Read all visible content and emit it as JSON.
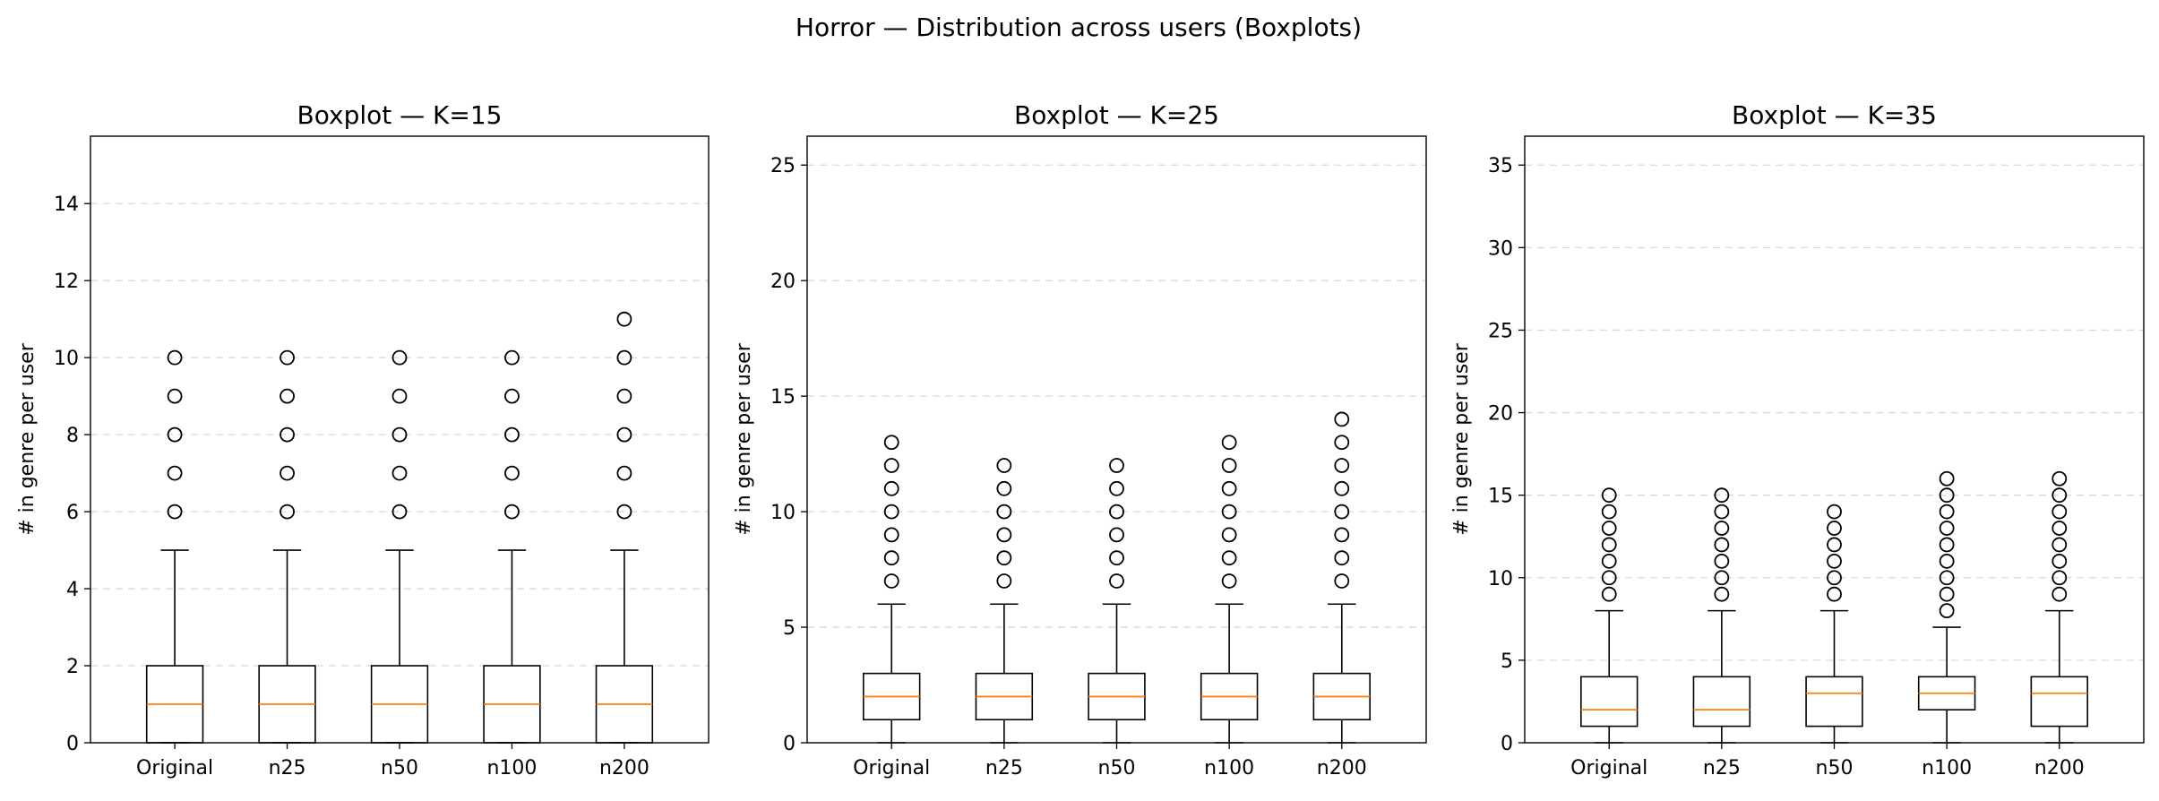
{
  "title": "Horror — Distribution across users (Boxplots)",
  "colors": {
    "median": "#ff7f0e",
    "box": "#000000",
    "grid": "#d9d9d9"
  },
  "chart_data": [
    {
      "type": "boxplot",
      "title": "Boxplot — K=15",
      "ylabel": "# in genre per user",
      "xlabel": "",
      "categories": [
        "Original",
        "n25",
        "n50",
        "n100",
        "n200"
      ],
      "ylim": [
        0,
        15.75
      ],
      "yticks": [
        0,
        2,
        4,
        6,
        8,
        10,
        12,
        14
      ],
      "grid": "y-dashed",
      "boxes": [
        {
          "q1": 0,
          "median": 1,
          "q3": 2,
          "whislo": 0,
          "whishi": 5,
          "fliers": [
            6,
            7,
            8,
            9,
            10
          ]
        },
        {
          "q1": 0,
          "median": 1,
          "q3": 2,
          "whislo": 0,
          "whishi": 5,
          "fliers": [
            6,
            7,
            8,
            9,
            10
          ]
        },
        {
          "q1": 0,
          "median": 1,
          "q3": 2,
          "whislo": 0,
          "whishi": 5,
          "fliers": [
            6,
            7,
            8,
            9,
            10
          ]
        },
        {
          "q1": 0,
          "median": 1,
          "q3": 2,
          "whislo": 0,
          "whishi": 5,
          "fliers": [
            6,
            7,
            8,
            9,
            10
          ]
        },
        {
          "q1": 0,
          "median": 1,
          "q3": 2,
          "whislo": 0,
          "whishi": 5,
          "fliers": [
            6,
            7,
            8,
            9,
            10,
            11
          ]
        }
      ]
    },
    {
      "type": "boxplot",
      "title": "Boxplot — K=25",
      "ylabel": "# in genre per user",
      "xlabel": "",
      "categories": [
        "Original",
        "n25",
        "n50",
        "n100",
        "n200"
      ],
      "ylim": [
        0,
        26.25
      ],
      "yticks": [
        0,
        5,
        10,
        15,
        20,
        25
      ],
      "grid": "y-dashed",
      "boxes": [
        {
          "q1": 1,
          "median": 2,
          "q3": 3,
          "whislo": 0,
          "whishi": 6,
          "fliers": [
            7,
            8,
            9,
            10,
            11,
            12,
            13
          ]
        },
        {
          "q1": 1,
          "median": 2,
          "q3": 3,
          "whislo": 0,
          "whishi": 6,
          "fliers": [
            7,
            8,
            9,
            10,
            11,
            12
          ]
        },
        {
          "q1": 1,
          "median": 2,
          "q3": 3,
          "whislo": 0,
          "whishi": 6,
          "fliers": [
            7,
            8,
            9,
            10,
            11,
            12
          ]
        },
        {
          "q1": 1,
          "median": 2,
          "q3": 3,
          "whislo": 0,
          "whishi": 6,
          "fliers": [
            7,
            8,
            9,
            10,
            11,
            12,
            13
          ]
        },
        {
          "q1": 1,
          "median": 2,
          "q3": 3,
          "whislo": 0,
          "whishi": 6,
          "fliers": [
            7,
            8,
            9,
            10,
            11,
            12,
            13,
            14
          ]
        }
      ]
    },
    {
      "type": "boxplot",
      "title": "Boxplot — K=35",
      "ylabel": "# in genre per user",
      "xlabel": "",
      "categories": [
        "Original",
        "n25",
        "n50",
        "n100",
        "n200"
      ],
      "ylim": [
        0,
        36.75
      ],
      "yticks": [
        0,
        5,
        10,
        15,
        20,
        25,
        30,
        35
      ],
      "grid": "y-dashed",
      "boxes": [
        {
          "q1": 1,
          "median": 2,
          "q3": 4,
          "whislo": 0,
          "whishi": 8,
          "fliers": [
            9,
            10,
            11,
            12,
            13,
            14,
            15
          ]
        },
        {
          "q1": 1,
          "median": 2,
          "q3": 4,
          "whislo": 0,
          "whishi": 8,
          "fliers": [
            9,
            10,
            11,
            12,
            13,
            14,
            15
          ]
        },
        {
          "q1": 1,
          "median": 3,
          "q3": 4,
          "whislo": 0,
          "whishi": 8,
          "fliers": [
            9,
            10,
            11,
            12,
            13,
            14
          ]
        },
        {
          "q1": 2,
          "median": 3,
          "q3": 4,
          "whislo": 0,
          "whishi": 7,
          "fliers": [
            8,
            9,
            10,
            11,
            12,
            13,
            14,
            15,
            16
          ]
        },
        {
          "q1": 1,
          "median": 3,
          "q3": 4,
          "whislo": 0,
          "whishi": 8,
          "fliers": [
            9,
            10,
            11,
            12,
            13,
            14,
            15,
            16
          ]
        }
      ]
    }
  ]
}
